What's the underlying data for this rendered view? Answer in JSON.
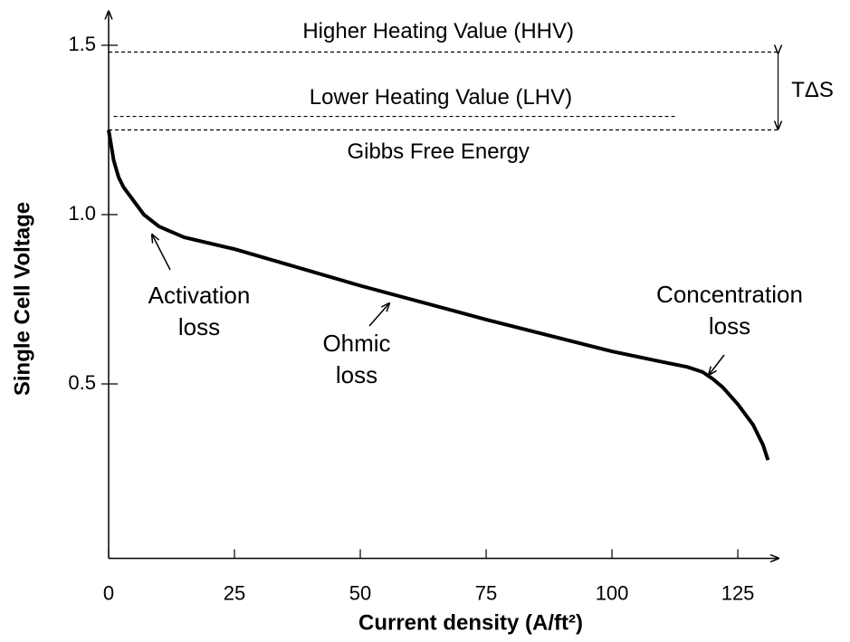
{
  "chart_data": {
    "type": "line",
    "xlabel": "Current density (A/ft²)",
    "ylabel": "Single Cell Voltage",
    "x": [
      0,
      1,
      2,
      3,
      5,
      7,
      10,
      15,
      25,
      50,
      75,
      100,
      110,
      115,
      118,
      120,
      122,
      125,
      128,
      130,
      131
    ],
    "values": [
      1.25,
      1.16,
      1.11,
      1.08,
      1.04,
      1.0,
      0.965,
      0.933,
      0.898,
      0.79,
      0.69,
      0.596,
      0.565,
      0.55,
      0.535,
      0.515,
      0.49,
      0.44,
      0.38,
      0.32,
      0.275
    ],
    "color": "#000000",
    "xlim": [
      0,
      132
    ],
    "ylim": [
      -0.015,
      1.6
    ],
    "xticks": [
      0,
      25,
      50,
      75,
      100,
      125
    ],
    "yticks": [
      0.5,
      {
        "value": 1,
        "label": "1.0"
      },
      1.5
    ],
    "reference_lines": [
      {
        "label": "Higher Heating Value (HHV)",
        "value": 1.48,
        "x_range": [
          0,
          133
        ]
      },
      {
        "label": "Lower Heating Value (LHV)",
        "value": 1.29,
        "x_range": [
          1,
          113
        ]
      },
      {
        "label": "Gibbs Free Energy",
        "value": 1.25,
        "x_range": [
          0,
          133
        ]
      }
    ],
    "bracket_label": "TΔS",
    "annotations": [
      {
        "text": [
          "Activation",
          "loss"
        ]
      },
      {
        "text": [
          "Ohmic",
          "loss"
        ]
      },
      {
        "text": [
          "Concentration",
          "loss"
        ]
      }
    ]
  }
}
